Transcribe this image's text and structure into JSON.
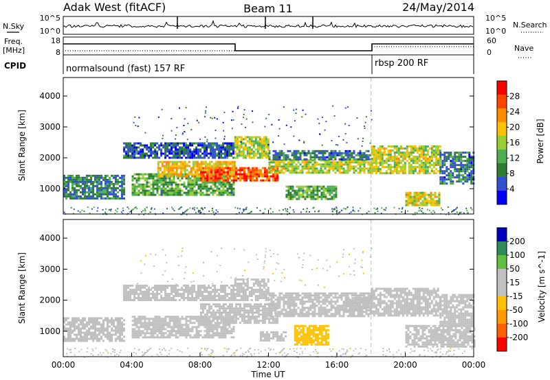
{
  "header": {
    "station": "Adak West (fitACF)",
    "beam": "Beam 11",
    "date": "24/May/2014"
  },
  "noise_panel": {
    "left_label": "N.Sky",
    "right_label": "N.Search",
    "left_ticks": [
      "10^5",
      "10^0"
    ],
    "right_ticks": [
      "10^5",
      "10^0"
    ]
  },
  "freq_panel": {
    "left_label_1": "Freq.",
    "left_label_2": "[MHz]",
    "left_ticks": [
      "18",
      "8"
    ],
    "right_label": "Nave",
    "right_ticks": [
      "60",
      "0"
    ]
  },
  "cpid_panel": {
    "label": "CPID",
    "modes": [
      "normalsound (fast) 157 RF",
      "rbsp 200 RF"
    ]
  },
  "xaxis": {
    "label": "Time UT",
    "ticks": [
      "00:00",
      "04:00",
      "08:00",
      "12:00",
      "16:00",
      "20:00",
      "00:00"
    ]
  },
  "colors": {
    "power": [
      "#0000ff",
      "#3050d0",
      "#2e7d32",
      "#4caf50",
      "#9acd32",
      "#ffc000",
      "#ff8c00",
      "#ff4500",
      "#ff0000"
    ],
    "velocity": [
      "#ff0000",
      "#ff6000",
      "#ff9900",
      "#ffc000",
      "#c0c0c0",
      "#c0c0c0",
      "#60c040",
      "#2e8b57",
      "#0000c0"
    ]
  },
  "chart_data": [
    {
      "type": "heatmap",
      "title": "",
      "xlabel": "",
      "ylabel": "Slant Range [km]",
      "xlim": [
        0,
        24
      ],
      "ylim": [
        180,
        4600
      ],
      "yticks": [
        "1000",
        "2000",
        "3000",
        "4000"
      ],
      "colorbar": {
        "label": "Power [dB]",
        "ticks": [
          "4",
          "8",
          "12",
          "16",
          "20",
          "24",
          "28"
        ],
        "range": [
          0,
          32
        ]
      },
      "bands": [
        {
          "t0": 0.0,
          "t1": 3.5,
          "r0": 700,
          "r1": 1450,
          "val": 9
        },
        {
          "t0": 3.5,
          "t1": 10.0,
          "r0": 2000,
          "r1": 2500,
          "val": 6
        },
        {
          "t0": 4.0,
          "t1": 10.0,
          "r0": 800,
          "r1": 1500,
          "val": 12
        },
        {
          "t0": 5.5,
          "t1": 10.0,
          "r0": 1400,
          "r1": 1900,
          "val": 20
        },
        {
          "t0": 8.0,
          "t1": 12.5,
          "r0": 1300,
          "r1": 1700,
          "val": 26
        },
        {
          "t0": 10.0,
          "t1": 12.0,
          "r0": 2000,
          "r1": 2700,
          "val": 16
        },
        {
          "t0": 12.0,
          "t1": 18.0,
          "r0": 1500,
          "r1": 1950,
          "val": 17
        },
        {
          "t0": 12.0,
          "t1": 18.0,
          "r0": 1950,
          "r1": 2250,
          "val": 8
        },
        {
          "t0": 13.0,
          "t1": 16.0,
          "r0": 700,
          "r1": 1100,
          "val": 12
        },
        {
          "t0": 18.0,
          "t1": 22.0,
          "r0": 1500,
          "r1": 2400,
          "val": 17
        },
        {
          "t0": 20.0,
          "t1": 22.0,
          "r0": 500,
          "r1": 900,
          "val": 18
        },
        {
          "t0": 22.0,
          "t1": 24.0,
          "r0": 1200,
          "r1": 2200,
          "val": 8
        }
      ]
    },
    {
      "type": "heatmap",
      "title": "",
      "xlabel": "Time UT",
      "ylabel": "Slant Range [km]",
      "xlim": [
        0,
        24
      ],
      "ylim": [
        180,
        4600
      ],
      "yticks": [
        "1000",
        "2000",
        "3000",
        "4000"
      ],
      "colorbar": {
        "label": "Velocity [m s^-1]",
        "ticks": [
          "-200",
          "-100",
          "-50",
          "-15",
          "15",
          "50",
          "100",
          "200"
        ],
        "range": [
          -250,
          250
        ]
      },
      "bands": [
        {
          "t0": 0.0,
          "t1": 3.5,
          "r0": 700,
          "r1": 1450,
          "val": 0
        },
        {
          "t0": 3.5,
          "t1": 10.0,
          "r0": 2000,
          "r1": 2500,
          "val": 0
        },
        {
          "t0": 4.0,
          "t1": 10.0,
          "r0": 800,
          "r1": 1500,
          "val": 0
        },
        {
          "t0": 8.0,
          "t1": 12.5,
          "r0": 1300,
          "r1": 1900,
          "val": 0
        },
        {
          "t0": 10.0,
          "t1": 12.0,
          "r0": 2000,
          "r1": 2700,
          "val": -10
        },
        {
          "t0": 12.0,
          "t1": 18.0,
          "r0": 1500,
          "r1": 2250,
          "val": 0
        },
        {
          "t0": 13.5,
          "t1": 15.5,
          "r0": 550,
          "r1": 1200,
          "val": -60
        },
        {
          "t0": 11.5,
          "t1": 13.0,
          "r0": 700,
          "r1": 1000,
          "val": 40
        },
        {
          "t0": 16.5,
          "t1": 18.0,
          "r0": 1700,
          "r1": 2100,
          "val": 40
        },
        {
          "t0": 18.0,
          "t1": 22.0,
          "r0": 1500,
          "r1": 2400,
          "val": 0
        },
        {
          "t0": 20.0,
          "t1": 24.0,
          "r0": 500,
          "r1": 1200,
          "val": 0
        },
        {
          "t0": 22.0,
          "t1": 24.0,
          "r0": 1200,
          "r1": 2200,
          "val": 0
        }
      ]
    }
  ]
}
